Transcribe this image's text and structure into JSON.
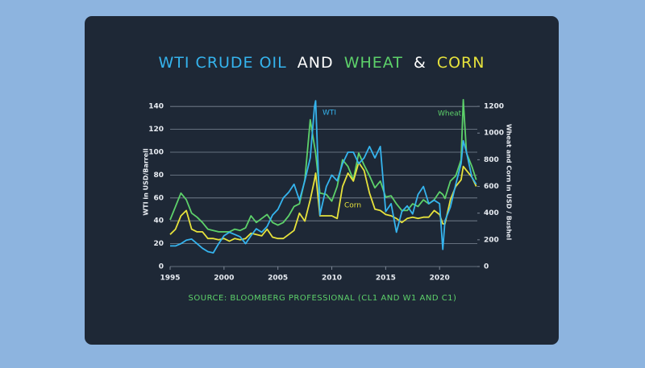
{
  "chart_data": {
    "type": "line",
    "title_parts": [
      {
        "text": "WTI CRUDE OIL",
        "color": "#35b4ee"
      },
      {
        "text": "AND",
        "color": "#ffffff"
      },
      {
        "text": "WHEAT",
        "color": "#5dd16a"
      },
      {
        "text": "&",
        "color": "#ffffff"
      },
      {
        "text": "CORN",
        "color": "#e6e23c"
      }
    ],
    "source": "SOURCE: BLOOMBERG PROFESSIONAL  (CL1 AND W1 AND C1)",
    "y_label": "WTI in USD/Barrell",
    "y2_label": "Wheat and Corn in USD / Bushel",
    "x": [
      1995,
      1995.5,
      1996,
      1996.5,
      1997,
      1997.5,
      1998,
      1998.5,
      1999,
      1999.5,
      2000,
      2000.5,
      2001,
      2001.5,
      2002,
      2002.5,
      2003,
      2003.5,
      2004,
      2004.5,
      2005,
      2005.5,
      2006,
      2006.5,
      2007,
      2007.5,
      2008,
      2008.4,
      2008.5,
      2008.9,
      2009.5,
      2010,
      2010.5,
      2011,
      2011.5,
      2012,
      2012.5,
      2013,
      2013.5,
      2014,
      2014.5,
      2015,
      2015.5,
      2016,
      2016.5,
      2017,
      2017.5,
      2018,
      2018.5,
      2019,
      2019.5,
      2020,
      2020.3,
      2020.5,
      2021,
      2021.5,
      2022,
      2022.2,
      2022.5,
      2023,
      2023.4
    ],
    "xlim": [
      1995,
      2023.5
    ],
    "xticks": [
      1995,
      2000,
      2005,
      2010,
      2015,
      2020
    ],
    "ylim": [
      0,
      150
    ],
    "yticks": [
      0,
      20,
      40,
      60,
      80,
      100,
      120,
      140
    ],
    "y2lim": [
      0,
      1285
    ],
    "y2ticks": [
      0,
      200,
      400,
      600,
      800,
      1000,
      1200
    ],
    "grid": true,
    "series": [
      {
        "name": "WTI",
        "color": "#35b4ee",
        "values": [
          18,
          18,
          20,
          23,
          24,
          20,
          16,
          13,
          12,
          20,
          27,
          30,
          28,
          26,
          20,
          27,
          33,
          30,
          35,
          45,
          50,
          60,
          65,
          72,
          58,
          75,
          95,
          140,
          145,
          45,
          70,
          80,
          75,
          90,
          100,
          100,
          90,
          95,
          105,
          95,
          105,
          48,
          55,
          30,
          48,
          53,
          46,
          63,
          70,
          55,
          58,
          55,
          15,
          40,
          52,
          72,
          90,
          110,
          100,
          78,
          72
        ]
      },
      {
        "name": "Wheat",
        "color": "#5dd16a",
        "axis": "y2",
        "values": [
          350,
          450,
          550,
          500,
          400,
          370,
          330,
          280,
          270,
          260,
          260,
          260,
          280,
          270,
          290,
          380,
          330,
          360,
          390,
          330,
          310,
          330,
          380,
          450,
          470,
          650,
          1100,
          900,
          850,
          550,
          540,
          490,
          600,
          800,
          750,
          650,
          850,
          760,
          680,
          590,
          640,
          520,
          530,
          470,
          420,
          420,
          470,
          450,
          500,
          470,
          500,
          560,
          540,
          510,
          640,
          680,
          800,
          1250,
          850,
          750,
          650
        ]
      },
      {
        "name": "Corn",
        "color": "#e6e23c",
        "axis": "y2",
        "values": [
          240,
          280,
          380,
          420,
          280,
          260,
          260,
          210,
          210,
          200,
          210,
          190,
          210,
          200,
          210,
          250,
          240,
          230,
          280,
          220,
          210,
          210,
          240,
          270,
          400,
          340,
          500,
          650,
          700,
          380,
          380,
          380,
          360,
          600,
          700,
          640,
          780,
          720,
          550,
          430,
          420,
          390,
          380,
          360,
          330,
          360,
          370,
          360,
          370,
          370,
          420,
          390,
          320,
          320,
          500,
          600,
          650,
          750,
          720,
          670,
          600
        ]
      }
    ]
  }
}
